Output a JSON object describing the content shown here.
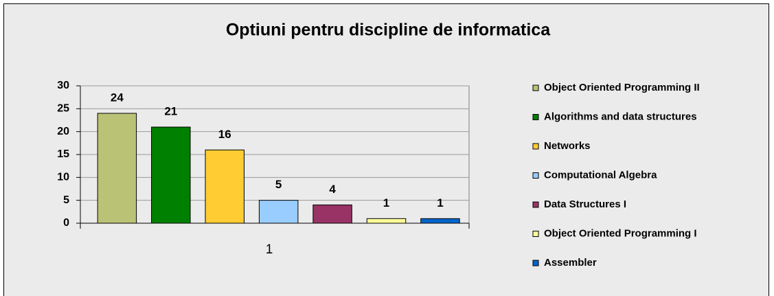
{
  "chart_data": {
    "type": "bar",
    "title": "Optiuni pentru discipline de informatica",
    "categories": [
      "1"
    ],
    "series": [
      {
        "name": "Object Oriented Programming II",
        "color": "#bac276",
        "values": [
          24
        ]
      },
      {
        "name": "Algorithms and data structures",
        "color": "#008000",
        "values": [
          21
        ]
      },
      {
        "name": "Networks",
        "color": "#ffcc33",
        "values": [
          16
        ]
      },
      {
        "name": "Computational Algebra",
        "color": "#99ccff",
        "values": [
          5
        ]
      },
      {
        "name": "Data Structures I",
        "color": "#993366",
        "values": [
          4
        ]
      },
      {
        "name": "Object Oriented Programming I",
        "color": "#ffff99",
        "values": [
          1
        ]
      },
      {
        "name": "Assembler",
        "color": "#0066cc",
        "values": [
          1
        ]
      }
    ],
    "ylim": [
      0,
      30
    ],
    "yticks": [
      0,
      5,
      10,
      15,
      20,
      25,
      30
    ],
    "grid": true,
    "legend": "right"
  }
}
